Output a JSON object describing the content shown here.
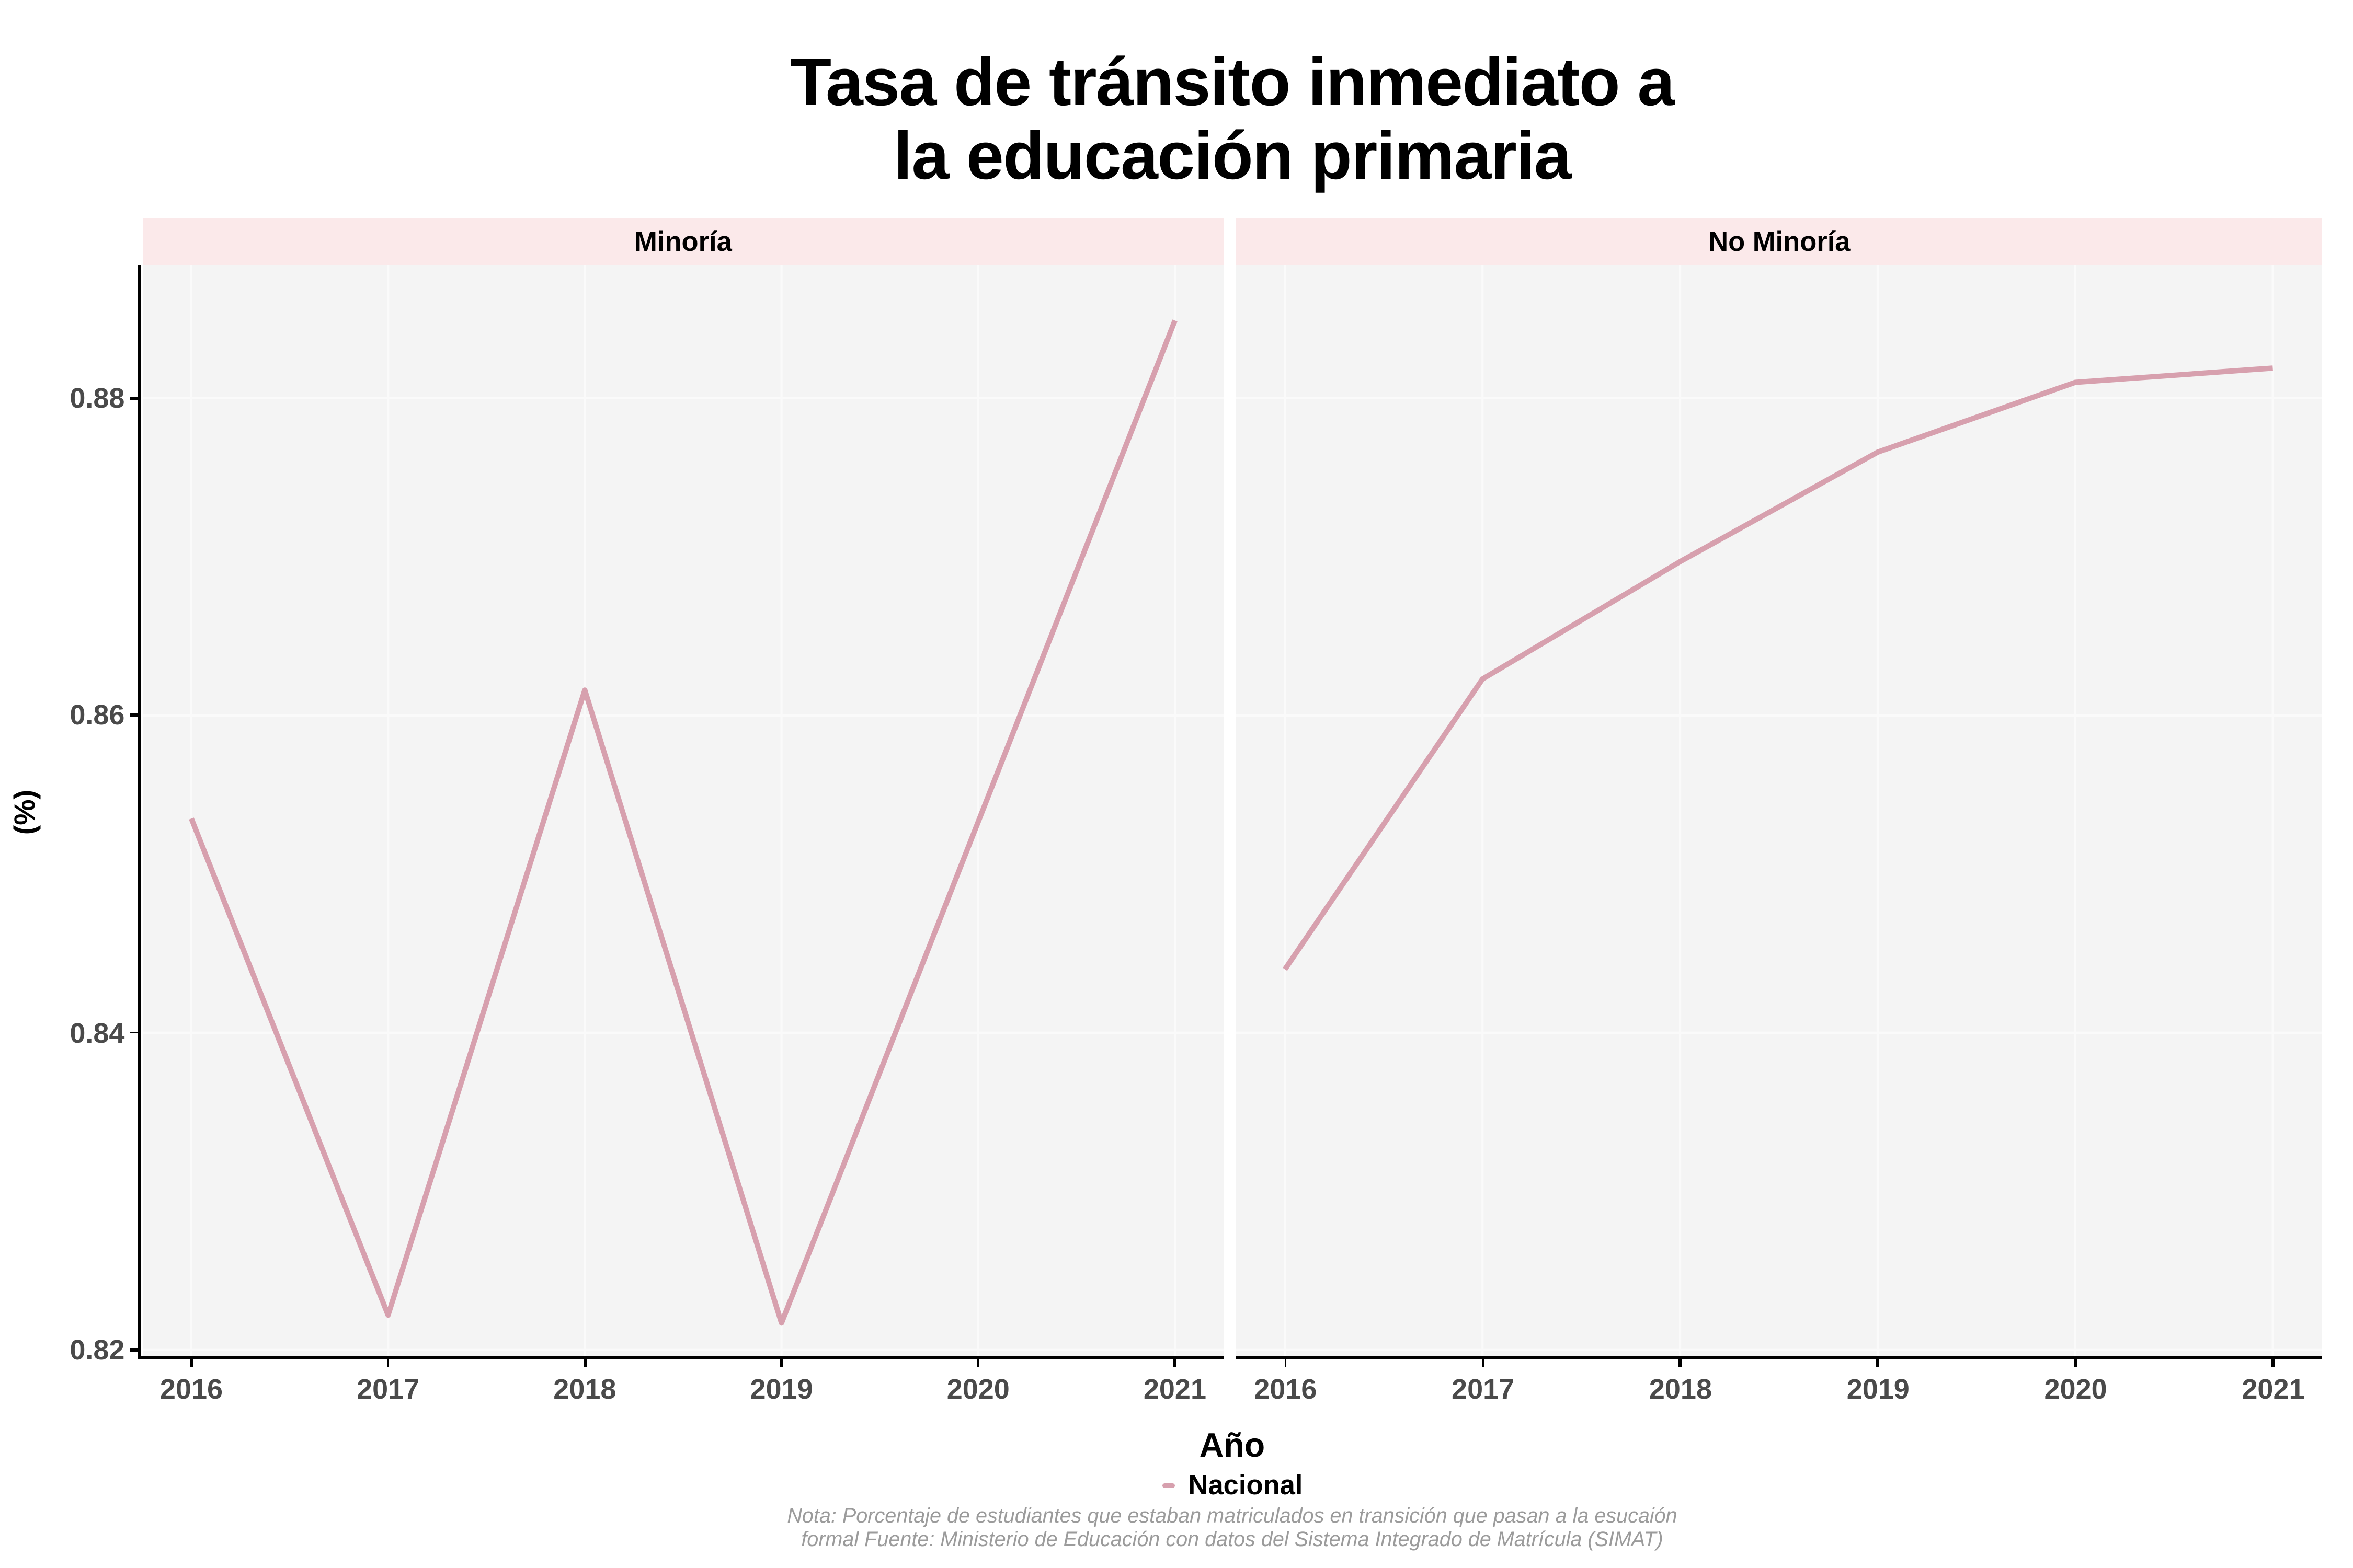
{
  "chart_data": {
    "type": "line",
    "title_lines": [
      "Tasa de tránsito inmediato a",
      "la educación primaria"
    ],
    "xlabel": "Año",
    "ylabel": "(%)",
    "x": [
      2016,
      2017,
      2018,
      2019,
      2020,
      2021
    ],
    "xticks": [
      {
        "value": 2016,
        "label": "2016"
      },
      {
        "value": 2017,
        "label": "2017"
      },
      {
        "value": 2018,
        "label": "2018"
      },
      {
        "value": 2019,
        "label": "2019"
      },
      {
        "value": 2020,
        "label": "2020"
      },
      {
        "value": 2021,
        "label": "2021"
      }
    ],
    "ylim": [
      0.8196,
      0.8884
    ],
    "yticks": [
      {
        "value": 0.88,
        "label": "0.88"
      },
      {
        "value": 0.86,
        "label": "0.86"
      },
      {
        "value": 0.84,
        "label": "0.84"
      },
      {
        "value": 0.82,
        "label": "0.82"
      }
    ],
    "grid": true,
    "facets": [
      {
        "label": "Minoría",
        "series": [
          {
            "name": "Nacional",
            "values": [
              0.8535,
              0.8222,
              0.8616,
              0.8217,
              null,
              0.8849
            ]
          }
        ]
      },
      {
        "label": "No Minoría",
        "series": [
          {
            "name": "Nacional",
            "values": [
              0.844,
              0.8623,
              0.8697,
              0.8766,
              0.881,
              0.8819
            ]
          }
        ]
      }
    ],
    "legend": {
      "position": "bottom",
      "entries": [
        "Nacional"
      ]
    },
    "note_lines": [
      "Nota: Porcentaje de estudiantes que estaban matriculados en transición que pasan a la esucaión",
      "formal Fuente: Ministerio de Educación con datos del Sistema Integrado de Matrícula (SIMAT)"
    ],
    "colors": {
      "series": "#D7A0AE",
      "strip_bg": "#FBE9EA",
      "panel_bg": "#F4F4F4",
      "gridline": "#FAFAFA",
      "axis_line": "#000000",
      "axis_text": "#4A4A4A",
      "note_text": "#9B9B9B"
    }
  }
}
